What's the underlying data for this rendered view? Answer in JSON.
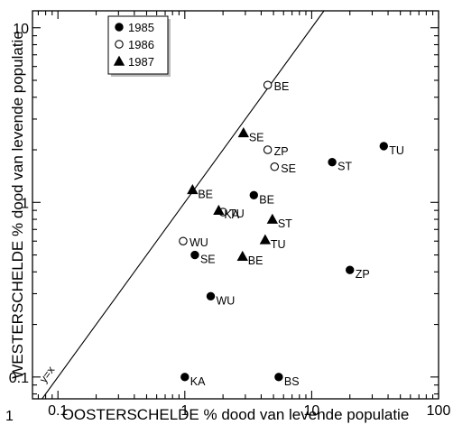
{
  "chart_data": {
    "type": "scatter",
    "xscale": "log",
    "yscale": "log",
    "xlim": [
      0.063,
      100
    ],
    "ylim": [
      0.075,
      12.5
    ],
    "xticks": [
      0.1,
      1,
      10,
      100
    ],
    "xtick_labels": [
      "0.1",
      "1",
      "10",
      "100"
    ],
    "yticks": [
      0.1,
      1,
      10
    ],
    "ytick_labels": [
      "0.1",
      "1",
      "10"
    ],
    "corner_label": "1",
    "xlabel": "OOSTERSCHELDE % dood van levende populatie",
    "ylabel": "WESTERSCHELDE % dood van levende populatie",
    "diagonal_label": "y=x",
    "legend_position": "top-left",
    "series": [
      {
        "name": "1985",
        "marker": "filled-circle",
        "points": [
          {
            "x": 37,
            "y": 2.1,
            "label": "TU"
          },
          {
            "x": 14.5,
            "y": 1.7,
            "label": "ST"
          },
          {
            "x": 3.5,
            "y": 1.1,
            "label": "BE"
          },
          {
            "x": 20,
            "y": 0.41,
            "label": "ZP"
          },
          {
            "x": 1.2,
            "y": 0.5,
            "label": "SE"
          },
          {
            "x": 1.6,
            "y": 0.29,
            "label": "WU"
          },
          {
            "x": 1.0,
            "y": 0.1,
            "label": "KA"
          },
          {
            "x": 5.5,
            "y": 0.1,
            "label": "BS"
          }
        ]
      },
      {
        "name": "1986",
        "marker": "open-circle",
        "points": [
          {
            "x": 4.5,
            "y": 4.7,
            "label": "BE"
          },
          {
            "x": 4.5,
            "y": 2.0,
            "label": "ZP"
          },
          {
            "x": 5.1,
            "y": 1.6,
            "label": "SE"
          },
          {
            "x": 2.0,
            "y": 0.88,
            "label": "TU"
          },
          {
            "x": 0.97,
            "y": 0.6,
            "label": "WU"
          }
        ]
      },
      {
        "name": "1987",
        "marker": "filled-triangle",
        "points": [
          {
            "x": 2.9,
            "y": 2.5,
            "label": "SE"
          },
          {
            "x": 1.15,
            "y": 1.18,
            "label": "BE"
          },
          {
            "x": 1.85,
            "y": 0.9,
            "label": "KA"
          },
          {
            "x": 4.9,
            "y": 0.8,
            "label": "ST"
          },
          {
            "x": 4.3,
            "y": 0.61,
            "label": "TU"
          },
          {
            "x": 2.85,
            "y": 0.49,
            "label": "BE"
          }
        ]
      }
    ]
  }
}
